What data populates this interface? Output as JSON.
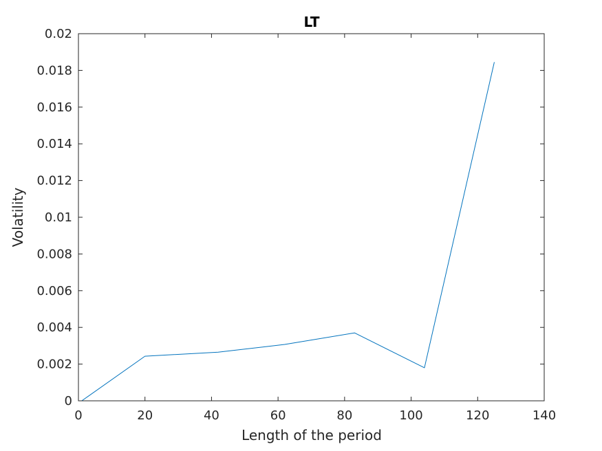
{
  "chart_data": {
    "type": "line",
    "title": "LT",
    "xlabel": "Length of the period",
    "ylabel": "Volatility",
    "xlim": [
      0,
      140
    ],
    "ylim": [
      0,
      0.02
    ],
    "xticks": [
      0,
      20,
      40,
      60,
      80,
      100,
      120,
      140
    ],
    "xtick_labels": [
      "0",
      "20",
      "40",
      "60",
      "80",
      "100",
      "120",
      "140"
    ],
    "yticks": [
      0,
      0.002,
      0.004,
      0.006,
      0.008,
      0.01,
      0.012,
      0.014,
      0.016,
      0.018,
      0.02
    ],
    "ytick_labels": [
      "0",
      "0.002",
      "0.004",
      "0.006",
      "0.008",
      "0.01",
      "0.012",
      "0.014",
      "0.016",
      "0.018",
      "0.02"
    ],
    "grid": false,
    "line_color": "#0072bd",
    "series": [
      {
        "x": [
          1,
          20,
          42,
          62,
          83,
          104,
          125
        ],
        "y": [
          0.0,
          0.00243,
          0.00265,
          0.00307,
          0.0037,
          0.0018,
          0.01845
        ]
      }
    ]
  }
}
